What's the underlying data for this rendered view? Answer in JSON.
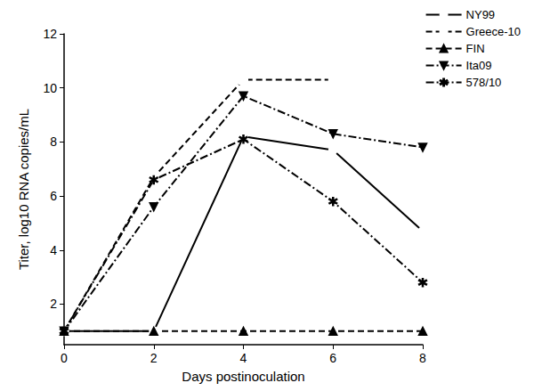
{
  "chart_data": {
    "type": "line",
    "x_label": "Days postinoculation",
    "y_label": "Titer, log10 RNA copies/mL",
    "x": [
      0,
      2,
      4,
      6,
      8
    ],
    "xlim": [
      0,
      8
    ],
    "xticks": [
      0,
      2,
      4,
      6,
      8
    ],
    "ylim": [
      0.5,
      12
    ],
    "yticks": [
      2,
      4,
      6,
      8,
      10,
      12
    ],
    "grid": false,
    "legend": "top-right",
    "series": [
      {
        "name": "NY99",
        "color": "#000000",
        "marker": "circle-open",
        "line_style": "solid",
        "values": [
          1,
          1,
          8.2,
          7.7,
          4.7
        ]
      },
      {
        "name": "Greece-10",
        "color": "#000000",
        "marker": "square-open",
        "line_style": "dashed",
        "values": [
          1,
          6.7,
          10.3,
          10.3,
          null
        ]
      },
      {
        "name": "FIN",
        "color": "#000000",
        "marker": "triangle",
        "line_style": "dashed",
        "values": [
          1,
          1,
          1,
          1,
          1
        ]
      },
      {
        "name": "Ita09",
        "color": "#000000",
        "marker": "triangle-down",
        "line_style": "dashdot",
        "values": [
          1,
          5.6,
          9.7,
          8.3,
          7.8
        ]
      },
      {
        "name": "578/10",
        "color": "#000000",
        "marker": "star",
        "line_style": "dashdot",
        "values": [
          1,
          6.6,
          8.1,
          5.8,
          2.8
        ]
      }
    ]
  }
}
